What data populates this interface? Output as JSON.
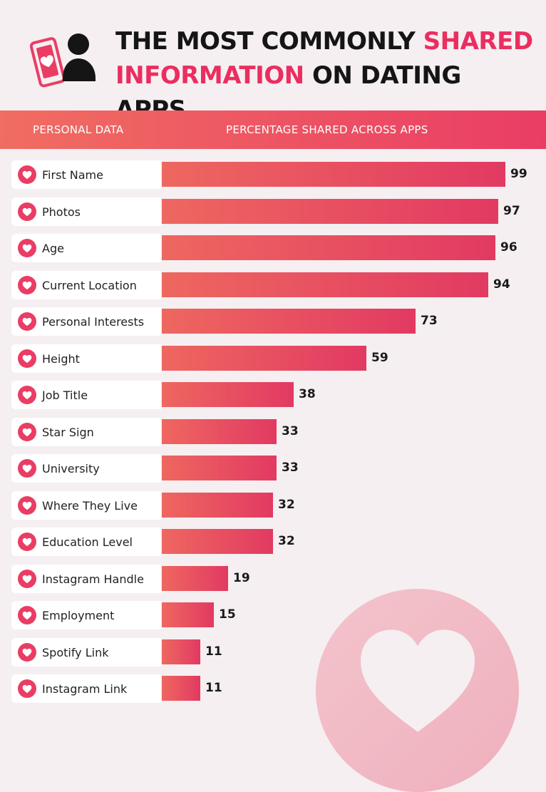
{
  "title": {
    "line1_part1": "THE MOST COMMONLY ",
    "line1_highlight": "SHARED",
    "line2_highlight": "INFORMATION",
    "line2_part2": " ON DATING APPS"
  },
  "header": {
    "col1": "PERSONAL DATA",
    "col2": "PERCENTAGE SHARED ACROSS APPS"
  },
  "colors": {
    "accent": "#ea2e60",
    "bar_start": "#ee6760",
    "bar_end": "#e23a62",
    "background": "#f5eff1"
  },
  "icons": {
    "title_icon": "phone-heart-person-icon",
    "row_icon": "heart-icon",
    "decoration": "heart-circle-decoration"
  },
  "chart_data": {
    "type": "bar",
    "orientation": "horizontal",
    "title": "THE MOST COMMONLY SHARED INFORMATION ON DATING APPS",
    "xlabel": "PERCENTAGE SHARED ACROSS APPS",
    "ylabel": "PERSONAL DATA",
    "xlim": [
      0,
      100
    ],
    "grid": false,
    "categories": [
      "First Name",
      "Photos",
      "Age",
      "Current Location",
      "Personal Interests",
      "Height",
      "Job Title",
      "Star Sign",
      "University",
      "Where They Live",
      "Education Level",
      "Instagram Handle",
      "Employment",
      "Spotify Link",
      "Instagram Link"
    ],
    "values": [
      99,
      97,
      96,
      94,
      73,
      59,
      38,
      33,
      33,
      32,
      32,
      19,
      15,
      11,
      11
    ]
  }
}
